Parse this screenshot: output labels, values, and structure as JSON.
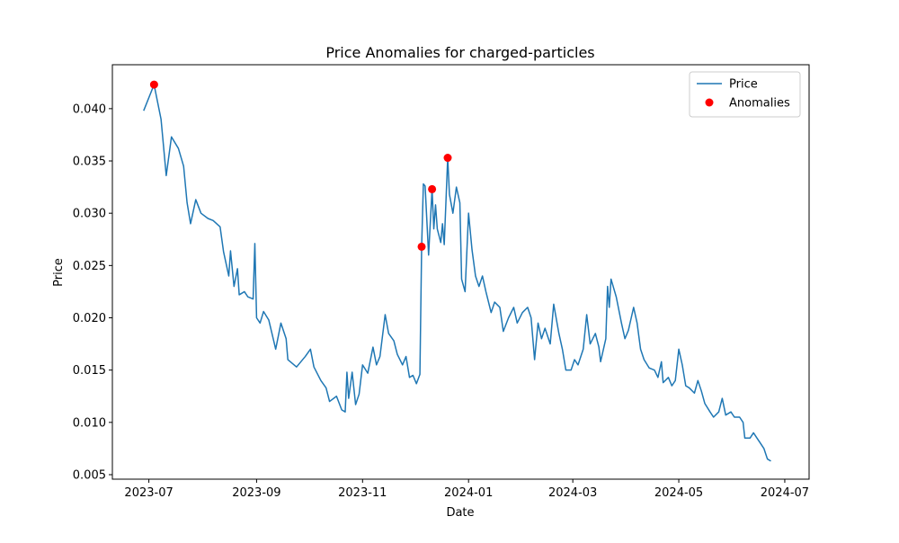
{
  "chart_data": {
    "type": "line",
    "title": "Price Anomalies for charged-particles",
    "xlabel": "Date",
    "ylabel": "Price",
    "legend": "upper right",
    "xlim": [
      "2023-06-10",
      "2024-07-15"
    ],
    "xticks": [
      {
        "value": "2023-07-01",
        "label": "2023-07"
      },
      {
        "value": "2023-09-01",
        "label": "2023-09"
      },
      {
        "value": "2023-11-01",
        "label": "2023-11"
      },
      {
        "value": "2024-01-01",
        "label": "2024-01"
      },
      {
        "value": "2024-03-01",
        "label": "2024-03"
      },
      {
        "value": "2024-05-01",
        "label": "2024-05"
      },
      {
        "value": "2024-07-01",
        "label": "2024-07"
      }
    ],
    "ylim": [
      0.00457,
      0.0442
    ],
    "yticks": [
      0.005,
      {
        "value": 0.01,
        "label": "0.010"
      },
      0.015,
      {
        "value": 0.02,
        "label": "0.020"
      },
      0.025,
      {
        "value": 0.03,
        "label": "0.030"
      },
      0.035,
      {
        "value": 0.04,
        "label": "0.040"
      }
    ],
    "series": [
      {
        "name": "Price",
        "type": "line",
        "color": "#1f77b4",
        "x": [
          "2023-06-28",
          "2023-07-04",
          "2023-07-08",
          "2023-07-11",
          "2023-07-14",
          "2023-07-18",
          "2023-07-21",
          "2023-07-23",
          "2023-07-25",
          "2023-07-28",
          "2023-07-31",
          "2023-08-04",
          "2023-08-07",
          "2023-08-11",
          "2023-08-13",
          "2023-08-16",
          "2023-08-17",
          "2023-08-19",
          "2023-08-21",
          "2023-08-22",
          "2023-08-25",
          "2023-08-27",
          "2023-08-30",
          "2023-08-31",
          "2023-09-01",
          "2023-09-03",
          "2023-09-05",
          "2023-09-08",
          "2023-09-12",
          "2023-09-15",
          "2023-09-18",
          "2023-09-19",
          "2023-09-24",
          "2023-09-29",
          "2023-10-02",
          "2023-10-04",
          "2023-10-08",
          "2023-10-11",
          "2023-10-13",
          "2023-10-17",
          "2023-10-20",
          "2023-10-22",
          "2023-10-23",
          "2023-10-24",
          "2023-10-26",
          "2023-10-28",
          "2023-10-30",
          "2023-11-01",
          "2023-11-04",
          "2023-11-07",
          "2023-11-09",
          "2023-11-11",
          "2023-11-14",
          "2023-11-16",
          "2023-11-19",
          "2023-11-21",
          "2023-11-24",
          "2023-11-26",
          "2023-11-28",
          "2023-11-30",
          "2023-12-02",
          "2023-12-04",
          "2023-12-05",
          "2023-12-06",
          "2023-12-07",
          "2023-12-09",
          "2023-12-11",
          "2023-12-12",
          "2023-12-13",
          "2023-12-14",
          "2023-12-16",
          "2023-12-17",
          "2023-12-18",
          "2023-12-20",
          "2023-12-21",
          "2023-12-23",
          "2023-12-25",
          "2023-12-27",
          "2023-12-28",
          "2023-12-30",
          "2024-01-01",
          "2024-01-03",
          "2024-01-05",
          "2024-01-07",
          "2024-01-09",
          "2024-01-11",
          "2024-01-14",
          "2024-01-16",
          "2024-01-19",
          "2024-01-21",
          "2024-01-24",
          "2024-01-27",
          "2024-01-29",
          "2024-02-01",
          "2024-02-04",
          "2024-02-06",
          "2024-02-08",
          "2024-02-10",
          "2024-02-12",
          "2024-02-14",
          "2024-02-17",
          "2024-02-19",
          "2024-02-22",
          "2024-02-24",
          "2024-02-26",
          "2024-02-29",
          "2024-03-02",
          "2024-03-04",
          "2024-03-07",
          "2024-03-09",
          "2024-03-11",
          "2024-03-14",
          "2024-03-16",
          "2024-03-17",
          "2024-03-20",
          "2024-03-21",
          "2024-03-22",
          "2024-03-23",
          "2024-03-26",
          "2024-03-29",
          "2024-03-31",
          "2024-04-02",
          "2024-04-05",
          "2024-04-07",
          "2024-04-09",
          "2024-04-11",
          "2024-04-14",
          "2024-04-17",
          "2024-04-19",
          "2024-04-21",
          "2024-04-22",
          "2024-04-25",
          "2024-04-27",
          "2024-04-29",
          "2024-05-01",
          "2024-05-03",
          "2024-05-05",
          "2024-05-07",
          "2024-05-10",
          "2024-05-12",
          "2024-05-14",
          "2024-05-16",
          "2024-05-19",
          "2024-05-21",
          "2024-05-24",
          "2024-05-26",
          "2024-05-28",
          "2024-05-31",
          "2024-06-02",
          "2024-06-05",
          "2024-06-07",
          "2024-06-08",
          "2024-06-11",
          "2024-06-13",
          "2024-06-15",
          "2024-06-17",
          "2024-06-19",
          "2024-06-21",
          "2024-06-23"
        ],
        "values": [
          0.0398,
          0.0423,
          0.039,
          0.0336,
          0.0373,
          0.0362,
          0.0345,
          0.031,
          0.029,
          0.0313,
          0.03,
          0.0295,
          0.0293,
          0.0287,
          0.0263,
          0.024,
          0.0264,
          0.023,
          0.0247,
          0.0222,
          0.0225,
          0.022,
          0.0218,
          0.0271,
          0.02,
          0.0195,
          0.0206,
          0.0198,
          0.017,
          0.0195,
          0.018,
          0.016,
          0.0153,
          0.0163,
          0.017,
          0.0153,
          0.014,
          0.0133,
          0.012,
          0.0125,
          0.0112,
          0.011,
          0.0148,
          0.0123,
          0.0148,
          0.0117,
          0.0127,
          0.0155,
          0.0147,
          0.0172,
          0.0155,
          0.0163,
          0.0203,
          0.0185,
          0.0178,
          0.0165,
          0.0155,
          0.0163,
          0.0143,
          0.0145,
          0.0137,
          0.0146,
          0.0268,
          0.0328,
          0.0326,
          0.026,
          0.0323,
          0.0285,
          0.0308,
          0.0285,
          0.0272,
          0.029,
          0.027,
          0.0353,
          0.0318,
          0.03,
          0.0325,
          0.031,
          0.0237,
          0.0225,
          0.03,
          0.0265,
          0.024,
          0.023,
          0.024,
          0.0225,
          0.0205,
          0.0215,
          0.021,
          0.0187,
          0.02,
          0.021,
          0.0195,
          0.0205,
          0.021,
          0.02,
          0.016,
          0.0195,
          0.018,
          0.019,
          0.0175,
          0.0213,
          0.0185,
          0.017,
          0.015,
          0.015,
          0.016,
          0.0155,
          0.017,
          0.0203,
          0.0175,
          0.0185,
          0.0172,
          0.0158,
          0.018,
          0.023,
          0.021,
          0.0237,
          0.022,
          0.0195,
          0.018,
          0.0188,
          0.021,
          0.0195,
          0.017,
          0.016,
          0.0152,
          0.015,
          0.0143,
          0.0158,
          0.0138,
          0.0143,
          0.0135,
          0.014,
          0.017,
          0.0155,
          0.0135,
          0.0133,
          0.0128,
          0.014,
          0.013,
          0.0118,
          0.011,
          0.0105,
          0.011,
          0.0123,
          0.0107,
          0.011,
          0.0105,
          0.0105,
          0.01,
          0.0085,
          0.0085,
          0.009,
          0.0085,
          0.008,
          0.0075,
          0.0065,
          0.0063
        ]
      },
      {
        "name": "Anomalies",
        "type": "scatter",
        "color": "#ff0000",
        "x": [
          "2023-07-04",
          "2023-12-05",
          "2023-12-11",
          "2023-12-20"
        ],
        "values": [
          0.0423,
          0.0268,
          0.0323,
          0.0353
        ]
      }
    ]
  }
}
